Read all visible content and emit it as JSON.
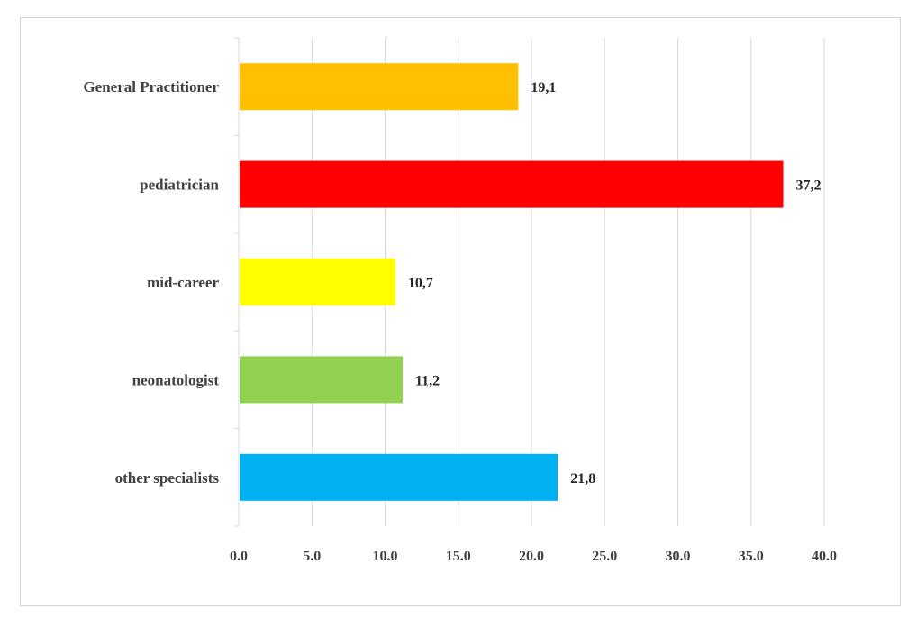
{
  "chart_data": {
    "type": "bar",
    "orientation": "horizontal",
    "categories": [
      "General Practitioner",
      "pediatrician",
      "mid-career",
      "neonatologist",
      "other specialists"
    ],
    "values": [
      19.1,
      37.2,
      10.7,
      11.2,
      21.8
    ],
    "data_labels": [
      "19,1",
      "37,2",
      "10,7",
      "11,2",
      "21,8"
    ],
    "colors": [
      "#FFC000",
      "#FF0000",
      "#FFFF00",
      "#92D050",
      "#00B0F0"
    ],
    "xlim": [
      0,
      40
    ],
    "xticks": [
      0,
      5,
      10,
      15,
      20,
      25,
      30,
      35,
      40
    ],
    "xtick_labels": [
      "0.0",
      "5.0",
      "10.0",
      "15.0",
      "20.0",
      "25.0",
      "30.0",
      "35.0",
      "40.0"
    ],
    "grid": "vertical",
    "legend": "none",
    "title": "",
    "xlabel": "",
    "ylabel": ""
  }
}
